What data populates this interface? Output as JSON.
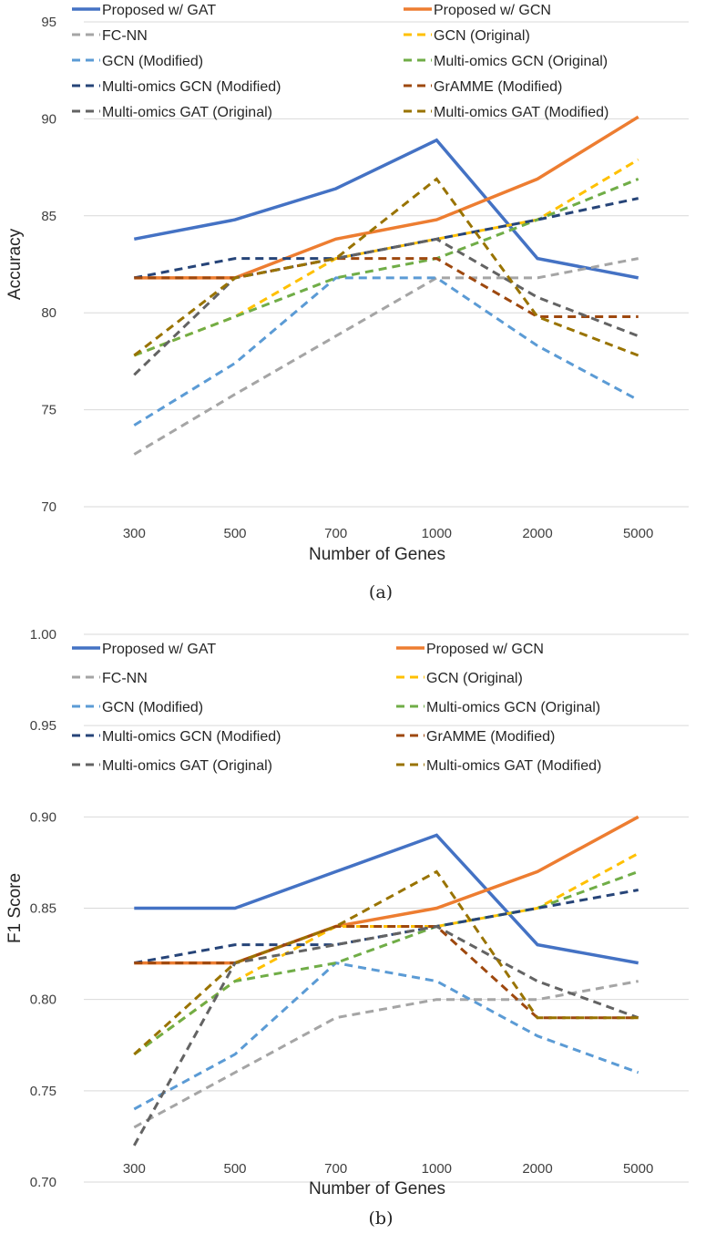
{
  "chart_data": [
    {
      "type": "line",
      "panel": "(a)",
      "xlabel": "Number of Genes",
      "ylabel": "Accuracy",
      "categories": [
        "300",
        "500",
        "700",
        "1000",
        "2000",
        "5000"
      ],
      "ylim": [
        70,
        95
      ],
      "yticks": [
        70,
        75,
        80,
        85,
        90,
        95
      ],
      "ytick_labels": [
        "70",
        "75",
        "80",
        "85",
        "90",
        "95"
      ],
      "grid": "horizontal",
      "legend": "top",
      "series": [
        {
          "name": "Proposed w/ GAT",
          "color": "#4472C4",
          "dash": "solid",
          "values": [
            83.8,
            84.8,
            86.4,
            88.9,
            82.8,
            81.8
          ]
        },
        {
          "name": "Proposed w/ GCN",
          "color": "#ED7D31",
          "dash": "solid",
          "values": [
            81.8,
            81.8,
            83.8,
            84.8,
            86.9,
            90.1
          ]
        },
        {
          "name": "FC-NN",
          "color": "#A5A5A5",
          "dash": "dashed",
          "values": [
            72.7,
            75.8,
            78.8,
            81.8,
            81.8,
            82.8
          ]
        },
        {
          "name": "GCN (Original)",
          "color": "#FFC000",
          "dash": "dashed",
          "values": [
            77.8,
            79.8,
            82.8,
            83.8,
            84.8,
            87.9
          ]
        },
        {
          "name": "GCN (Modified)",
          "color": "#5B9BD5",
          "dash": "dashed",
          "values": [
            74.2,
            77.4,
            81.8,
            81.8,
            78.3,
            75.5
          ]
        },
        {
          "name": "Multi-omics GCN (Original)",
          "color": "#70AD47",
          "dash": "dashed",
          "values": [
            77.8,
            79.8,
            81.8,
            82.8,
            84.8,
            86.9
          ]
        },
        {
          "name": "Multi-omics GCN (Modified)",
          "color": "#264478",
          "dash": "dashed",
          "values": [
            81.8,
            82.8,
            82.8,
            83.8,
            84.8,
            85.9
          ]
        },
        {
          "name": "GrAMME (Modified)",
          "color": "#9E480E",
          "dash": "dashed",
          "values": [
            81.8,
            81.8,
            82.8,
            82.8,
            79.8,
            79.8
          ]
        },
        {
          "name": "Multi-omics GAT (Original)",
          "color": "#636363",
          "dash": "dashed",
          "values": [
            76.8,
            81.8,
            82.8,
            83.8,
            80.8,
            78.8
          ]
        },
        {
          "name": "Multi-omics GAT (Modified)",
          "color": "#997300",
          "dash": "dashed",
          "values": [
            77.8,
            81.8,
            82.8,
            86.9,
            79.8,
            77.8
          ]
        }
      ]
    },
    {
      "type": "line",
      "panel": "(b)",
      "xlabel": "Number of Genes",
      "ylabel": "F1 Score",
      "categories": [
        "300",
        "500",
        "700",
        "1000",
        "2000",
        "5000"
      ],
      "ylim": [
        0.7,
        1.0
      ],
      "yticks": [
        0.7,
        0.75,
        0.8,
        0.85,
        0.9,
        0.95,
        1.0
      ],
      "ytick_labels": [
        "0.70",
        "0.75",
        "0.80",
        "0.85",
        "0.90",
        "0.95",
        "1.00"
      ],
      "grid": "horizontal",
      "legend": "top",
      "series": [
        {
          "name": "Proposed w/ GAT",
          "color": "#4472C4",
          "dash": "solid",
          "values": [
            0.85,
            0.85,
            0.87,
            0.89,
            0.83,
            0.82
          ]
        },
        {
          "name": "Proposed w/ GCN",
          "color": "#ED7D31",
          "dash": "solid",
          "values": [
            0.82,
            0.82,
            0.84,
            0.85,
            0.87,
            0.9
          ]
        },
        {
          "name": "FC-NN",
          "color": "#A5A5A5",
          "dash": "dashed",
          "values": [
            0.73,
            0.76,
            0.79,
            0.8,
            0.8,
            0.81
          ]
        },
        {
          "name": "GCN (Original)",
          "color": "#FFC000",
          "dash": "dashed",
          "values": [
            0.77,
            0.81,
            0.84,
            0.84,
            0.85,
            0.88
          ]
        },
        {
          "name": "GCN (Modified)",
          "color": "#5B9BD5",
          "dash": "dashed",
          "values": [
            0.74,
            0.77,
            0.82,
            0.81,
            0.78,
            0.76
          ]
        },
        {
          "name": "Multi-omics GCN (Original)",
          "color": "#70AD47",
          "dash": "dashed",
          "values": [
            0.77,
            0.81,
            0.82,
            0.84,
            0.85,
            0.87
          ]
        },
        {
          "name": "Multi-omics GCN (Modified)",
          "color": "#264478",
          "dash": "dashed",
          "values": [
            0.82,
            0.83,
            0.83,
            0.84,
            0.85,
            0.86
          ]
        },
        {
          "name": "GrAMME (Modified)",
          "color": "#9E480E",
          "dash": "dashed",
          "values": [
            0.82,
            0.82,
            0.84,
            0.84,
            0.79,
            0.79
          ]
        },
        {
          "name": "Multi-omics GAT (Original)",
          "color": "#636363",
          "dash": "dashed",
          "values": [
            0.72,
            0.82,
            0.83,
            0.84,
            0.81,
            0.79
          ]
        },
        {
          "name": "Multi-omics GAT (Modified)",
          "color": "#997300",
          "dash": "dashed",
          "values": [
            0.77,
            0.82,
            0.84,
            0.87,
            0.79,
            0.79
          ]
        }
      ]
    }
  ]
}
